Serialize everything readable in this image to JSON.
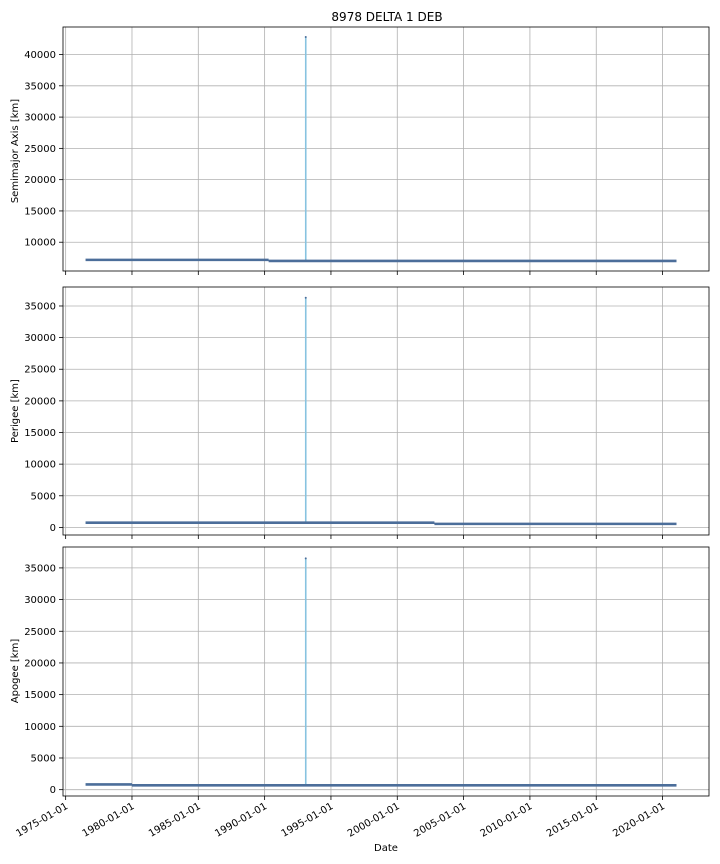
{
  "chart_data": {
    "type": "line",
    "title": "8978 DELTA 1 DEB",
    "xlabel": "Date",
    "x_tick_labels": [
      "1975-01-01",
      "1980-01-01",
      "1985-01-01",
      "1990-01-01",
      "1995-01-01",
      "2000-01-01",
      "2005-01-01",
      "2010-01-01",
      "2015-01-01",
      "2020-01-01"
    ],
    "x_tick_years": [
      1975,
      1980,
      1985,
      1990,
      1995,
      2000,
      2005,
      2010,
      2015,
      2020
    ],
    "xlim_years": [
      1974.8,
      2023.5
    ],
    "data_range_years": [
      1976.5,
      2021.05
    ],
    "colors": {
      "series": "#4c6e9a",
      "spike": "#87c3e0"
    },
    "panels": [
      {
        "ylabel": "Semimajor Axis [km]",
        "ylim": [
          5400,
          44400
        ],
        "yticks": [
          10000,
          15000,
          20000,
          25000,
          30000,
          35000,
          40000
        ],
        "ytick_labels": [
          "10000",
          "15000",
          "20000",
          "25000",
          "30000",
          "35000",
          "40000"
        ],
        "segments": [
          {
            "x0": 1976.5,
            "x1": 1990.3,
            "y": 7180
          },
          {
            "x0": 1990.3,
            "x1": 2021.05,
            "y": 7010
          }
        ],
        "spike": {
          "x": 1993.1,
          "y": 42800
        }
      },
      {
        "ylabel": "Perigee [km]",
        "ylim": [
          -1200,
          38000
        ],
        "yticks": [
          0,
          5000,
          10000,
          15000,
          20000,
          25000,
          30000,
          35000
        ],
        "ytick_labels": [
          "0",
          "5000",
          "10000",
          "15000",
          "20000",
          "25000",
          "30000",
          "35000"
        ],
        "segments": [
          {
            "x0": 1976.5,
            "x1": 2002.8,
            "y": 740
          },
          {
            "x0": 2002.8,
            "x1": 2021.05,
            "y": 560
          }
        ],
        "spike": {
          "x": 1993.1,
          "y": 36300
        }
      },
      {
        "ylabel": "Apogee [km]",
        "ylim": [
          -1000,
          38300
        ],
        "yticks": [
          0,
          5000,
          10000,
          15000,
          20000,
          25000,
          30000,
          35000
        ],
        "ytick_labels": [
          "0",
          "5000",
          "10000",
          "15000",
          "20000",
          "25000",
          "30000",
          "35000"
        ],
        "segments": [
          {
            "x0": 1976.5,
            "x1": 1980.0,
            "y": 820
          },
          {
            "x0": 1980.0,
            "x1": 2021.05,
            "y": 690
          }
        ],
        "spike": {
          "x": 1993.1,
          "y": 36500
        }
      }
    ]
  }
}
